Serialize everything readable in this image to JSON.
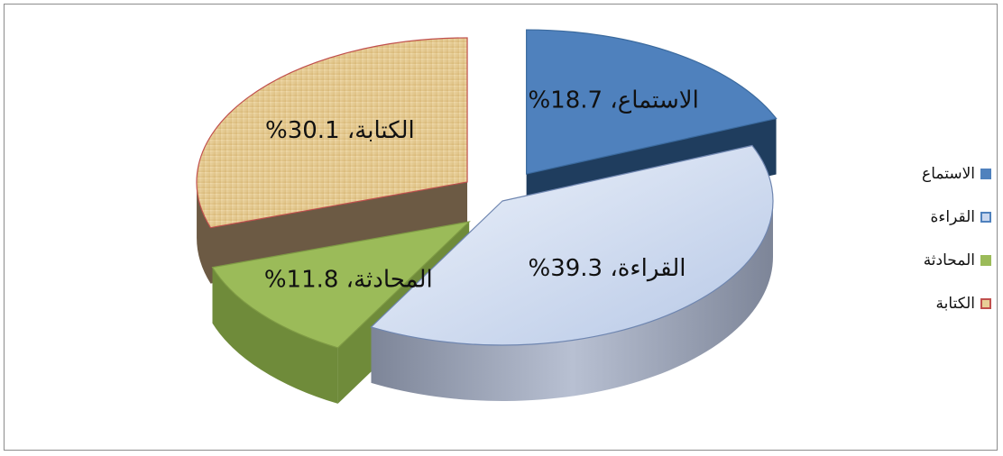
{
  "chart_data": {
    "type": "pie",
    "title": "",
    "slices": [
      {
        "name": "الاستماع",
        "value": 18.7,
        "label": "الاستماع، 18.7%",
        "color": "#4f81bd",
        "side": "#1f3d5e",
        "exploded": true
      },
      {
        "name": "القراءة",
        "value": 39.3,
        "label": "القراءة، 39.3%",
        "color": "#c9d7ef",
        "side": "#8d97ad",
        "exploded": false
      },
      {
        "name": "المحادثة",
        "value": 11.8,
        "label": "المحادثة، 11.8%",
        "color": "#9bbb59",
        "side": "#6f8b3a",
        "exploded": true
      },
      {
        "name": "الكتابة",
        "value": 30.1,
        "label": "الكتابة، 30.1%",
        "color": "#e8cf96",
        "side": "#6c5a44",
        "exploded": true
      }
    ],
    "legend": {
      "position": "right",
      "items": [
        {
          "label": "الاستماع",
          "color": "#4f81bd",
          "border": "#4f81bd"
        },
        {
          "label": "القراءة",
          "color": "#c9d7ef",
          "border": "#4f81bd"
        },
        {
          "label": "المحادثة",
          "color": "#9bbb59",
          "border": "#9bbb59"
        },
        {
          "label": "الكتابة",
          "color": "#e8cf96",
          "border": "#c0504d"
        }
      ]
    }
  }
}
